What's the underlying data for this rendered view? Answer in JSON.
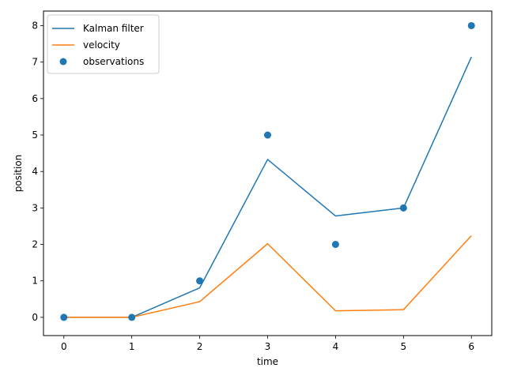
{
  "chart_data": {
    "type": "line",
    "title": "",
    "xlabel": "time",
    "ylabel": "position",
    "xlim": [
      -0.3,
      6.3
    ],
    "ylim": [
      -0.5,
      8.4
    ],
    "xticks": [
      0,
      1,
      2,
      3,
      4,
      5,
      6
    ],
    "yticks": [
      0,
      1,
      2,
      3,
      4,
      5,
      6,
      7,
      8
    ],
    "grid": false,
    "legend_position": "top-left",
    "x": [
      0,
      1,
      2,
      3,
      4,
      5,
      6
    ],
    "series": [
      {
        "name": "Kalman filter",
        "kind": "line",
        "color": "#1f77b4",
        "values": [
          0,
          0,
          0.81,
          4.33,
          2.78,
          3.0,
          7.14
        ]
      },
      {
        "name": "velocity",
        "kind": "line",
        "color": "#ff7f0e",
        "values": [
          0,
          0,
          0.43,
          2.02,
          0.18,
          0.21,
          2.24
        ]
      },
      {
        "name": "observations",
        "kind": "scatter",
        "color": "#1f77b4",
        "values": [
          0,
          0,
          1,
          5,
          2,
          3,
          8
        ]
      }
    ]
  }
}
